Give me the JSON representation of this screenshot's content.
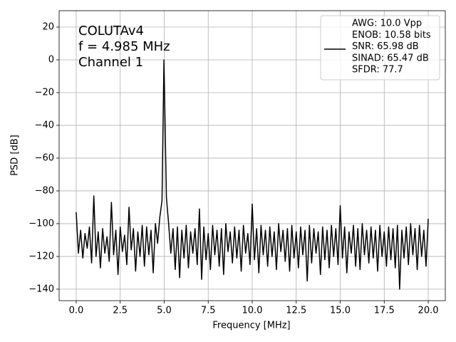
{
  "chart_data": {
    "type": "line",
    "annotation": [
      "COLUTAv4",
      "f = 4.985 MHz",
      "Channel 1"
    ],
    "x_label": "Frequency [MHz]",
    "y_label": "PSD [dB]",
    "x": [
      0,
      0.125,
      0.25,
      0.375,
      0.5,
      0.625,
      0.75,
      0.875,
      1,
      1.125,
      1.25,
      1.375,
      1.5,
      1.625,
      1.75,
      1.875,
      2,
      2.125,
      2.25,
      2.375,
      2.5,
      2.625,
      2.75,
      2.875,
      3,
      3.125,
      3.25,
      3.375,
      3.5,
      3.625,
      3.75,
      3.875,
      4,
      4.125,
      4.25,
      4.375,
      4.5,
      4.625,
      4.75,
      4.875,
      4.985,
      5.125,
      5.25,
      5.375,
      5.5,
      5.625,
      5.75,
      5.875,
      6,
      6.125,
      6.25,
      6.375,
      6.5,
      6.625,
      6.75,
      6.875,
      7,
      7.125,
      7.25,
      7.375,
      7.5,
      7.625,
      7.75,
      7.875,
      8,
      8.125,
      8.25,
      8.375,
      8.5,
      8.625,
      8.75,
      8.875,
      9,
      9.125,
      9.25,
      9.375,
      9.5,
      9.625,
      9.75,
      9.875,
      10,
      10.125,
      10.25,
      10.375,
      10.5,
      10.625,
      10.75,
      10.875,
      11,
      11.125,
      11.25,
      11.375,
      11.5,
      11.625,
      11.75,
      11.875,
      12,
      12.125,
      12.25,
      12.375,
      12.5,
      12.625,
      12.75,
      12.875,
      13,
      13.125,
      13.25,
      13.375,
      13.5,
      13.625,
      13.75,
      13.875,
      14,
      14.125,
      14.25,
      14.375,
      14.5,
      14.625,
      14.75,
      14.875,
      15,
      15.125,
      15.25,
      15.375,
      15.5,
      15.625,
      15.75,
      15.875,
      16,
      16.125,
      16.25,
      16.375,
      16.5,
      16.625,
      16.75,
      16.875,
      17,
      17.125,
      17.25,
      17.375,
      17.5,
      17.625,
      17.75,
      17.875,
      18,
      18.125,
      18.25,
      18.375,
      18.5,
      18.625,
      18.75,
      18.875,
      19,
      19.125,
      19.25,
      19.375,
      19.5,
      19.625,
      19.75,
      19.875,
      20
    ],
    "series": [
      {
        "name": [
          "AWG: 10.0 Vpp",
          "ENOB: 10.58 bits",
          "SNR: 65.98 dB",
          "SINAD: 65.47 dB",
          "SFDR: 77.7"
        ],
        "color": "#000000",
        "values": [
          -93,
          -118,
          -104,
          -121,
          -106,
          -115,
          -102,
          -124,
          -83,
          -120,
          -105,
          -127,
          -103,
          -118,
          -108,
          -123,
          -87,
          -119,
          -104,
          -131,
          -102,
          -117,
          -107,
          -125,
          -90,
          -116,
          -103,
          -129,
          -105,
          -120,
          -101,
          -126,
          -102,
          -119,
          -104,
          -130,
          -100,
          -112,
          -96,
          -86,
          0,
          -84,
          -100,
          -118,
          -103,
          -128,
          -102,
          -133,
          -104,
          -121,
          -101,
          -127,
          -105,
          -118,
          -103,
          -125,
          -91,
          -134,
          -102,
          -122,
          -106,
          -128,
          -101,
          -119,
          -104,
          -126,
          -103,
          -131,
          -100,
          -117,
          -105,
          -124,
          -102,
          -121,
          -104,
          -129,
          -101,
          -118,
          -106,
          -125,
          -88,
          -122,
          -103,
          -130,
          -101,
          -119,
          -104,
          -126,
          -102,
          -120,
          -105,
          -128,
          -100,
          -117,
          -104,
          -123,
          -103,
          -129,
          -101,
          -121,
          -105,
          -127,
          -102,
          -119,
          -104,
          -135,
          -101,
          -124,
          -103,
          -118,
          -105,
          -131,
          -102,
          -122,
          -104,
          -127,
          -101,
          -120,
          -103,
          -125,
          -89,
          -121,
          -102,
          -130,
          -105,
          -118,
          -101,
          -126,
          -103,
          -128,
          -100,
          -119,
          -104,
          -124,
          -102,
          -121,
          -104,
          -129,
          -101,
          -120,
          -105,
          -126,
          -102,
          -122,
          -103,
          -127,
          -101,
          -140,
          -104,
          -121,
          -102,
          -125,
          -100,
          -119,
          -103,
          -128,
          -101,
          -120,
          -104,
          -126,
          -97
        ]
      }
    ],
    "xlim": [
      -0.97,
      20.97
    ],
    "ylim": [
      -147,
      30
    ],
    "xticks": [
      {
        "value": 0,
        "label": "0.0"
      },
      {
        "value": 2.5,
        "label": "2.5"
      },
      {
        "value": 5,
        "label": "5.0"
      },
      {
        "value": 7.5,
        "label": "7.5"
      },
      {
        "value": 10,
        "label": "10.0"
      },
      {
        "value": 12.5,
        "label": "12.5"
      },
      {
        "value": 15,
        "label": "15.0"
      },
      {
        "value": 17.5,
        "label": "17.5"
      },
      {
        "value": 20,
        "label": "20.0"
      }
    ],
    "yticks": [
      {
        "value": -140,
        "label": "−140"
      },
      {
        "value": -120,
        "label": "−120"
      },
      {
        "value": -100,
        "label": "−100"
      },
      {
        "value": -80,
        "label": "−80"
      },
      {
        "value": -60,
        "label": "−60"
      },
      {
        "value": -40,
        "label": "−40"
      },
      {
        "value": -20,
        "label": "−20"
      },
      0,
      20
    ],
    "grid": true,
    "legend_position": "upper right"
  }
}
